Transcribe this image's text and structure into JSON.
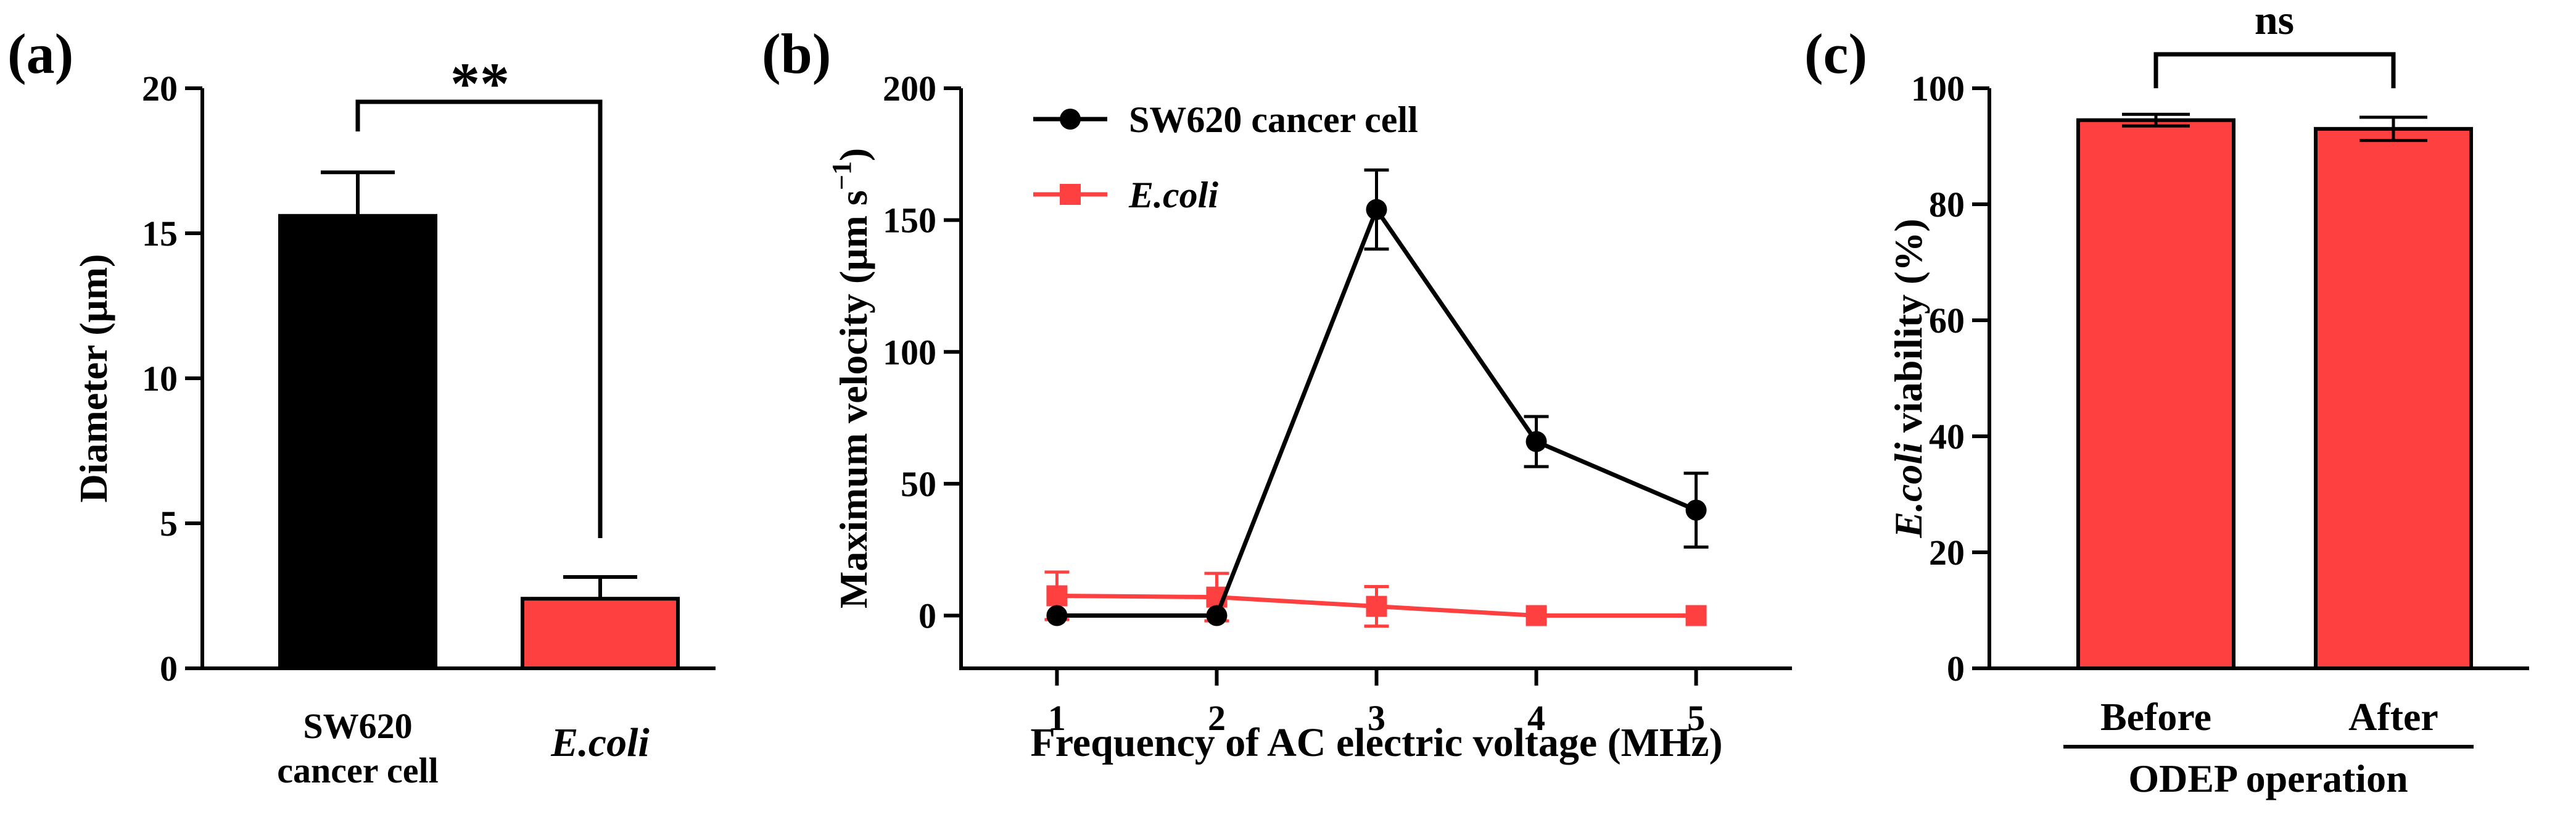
{
  "colors": {
    "black": "#000000",
    "red": "#ff4040",
    "red_dark": "#e02020"
  },
  "panels": {
    "a": "(a)",
    "b": "(b)",
    "c": "(c)"
  },
  "chart_data": [
    {
      "type": "bar",
      "panel": "(a)",
      "categories": [
        [
          "SW620",
          "cancer cell"
        ],
        [
          "E.coli"
        ]
      ],
      "values": [
        15.6,
        2.4
      ],
      "errors": [
        1.5,
        0.75
      ],
      "bar_colors": [
        "#000000",
        "#ff4040"
      ],
      "ylabel": "Diameter (μm)",
      "ylim": [
        0,
        20
      ],
      "yticks": [
        0,
        5,
        10,
        15,
        20
      ],
      "significance": "**"
    },
    {
      "type": "line",
      "panel": "(b)",
      "x": [
        1,
        2,
        3,
        4,
        5
      ],
      "xticks": [
        1,
        2,
        3,
        4,
        5
      ],
      "xlim": [
        0.4,
        5.6
      ],
      "xlabel": "Frequency of AC electric voltage (MHz)",
      "ylabel_main": "Maximum velocity (μm s",
      "ylabel_sup": "−1",
      "ylabel_end": ")",
      "ylim": [
        -20,
        200
      ],
      "yticks": [
        0,
        50,
        100,
        150,
        200
      ],
      "series": [
        {
          "name": "SW620 cancer cell",
          "color": "#000000",
          "marker": "circle",
          "values": [
            0,
            0,
            154,
            66,
            40
          ],
          "errors": [
            0,
            0,
            15,
            9.5,
            14
          ]
        },
        {
          "name": "E.coli",
          "color": "#ff4040",
          "marker": "square",
          "values": [
            7.5,
            7,
            3.5,
            0,
            0
          ],
          "errors": [
            9,
            9,
            7.5,
            0,
            0
          ]
        }
      ]
    },
    {
      "type": "bar",
      "panel": "(c)",
      "categories": [
        "Before",
        "After"
      ],
      "values": [
        94.5,
        93
      ],
      "errors": [
        1,
        2
      ],
      "bar_colors": [
        "#ff4040",
        "#ff4040"
      ],
      "ylabel_ital": "E.coli",
      "ylabel_rest": " viability (%)",
      "ylim": [
        0,
        100
      ],
      "yticks": [
        0,
        20,
        40,
        60,
        80,
        100
      ],
      "significance": "ns",
      "group_label": "ODEP operation"
    }
  ]
}
